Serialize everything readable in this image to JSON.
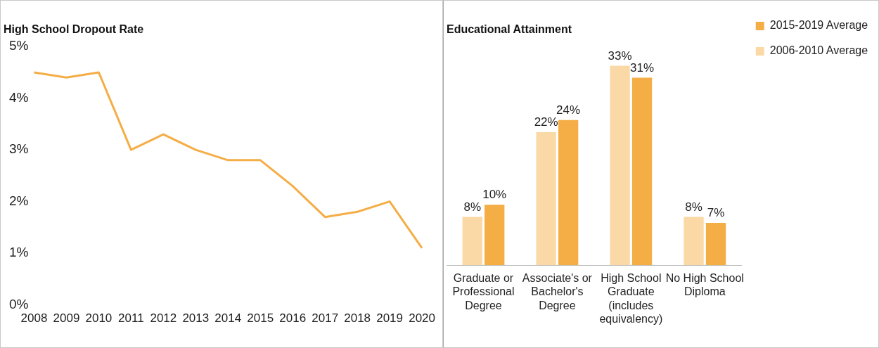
{
  "chart_data": [
    {
      "type": "line",
      "title": "High School Dropout Rate",
      "categories": [
        "2008",
        "2009",
        "2010",
        "2011",
        "2012",
        "2013",
        "2014",
        "2015",
        "2016",
        "2017",
        "2018",
        "2019",
        "2020"
      ],
      "series": [
        {
          "color": "#f5ad46",
          "values": [
            4.5,
            4.4,
            4.5,
            3.0,
            3.3,
            3.0,
            2.8,
            2.8,
            2.3,
            1.7,
            1.8,
            2.0,
            1.1
          ]
        }
      ],
      "ylim": [
        0,
        5
      ],
      "yticks": [
        {
          "value": 0,
          "label": "0%"
        },
        {
          "value": 1,
          "label": "1%"
        },
        {
          "value": 2,
          "label": "2%"
        },
        {
          "value": 3,
          "label": "3%"
        },
        {
          "value": 4,
          "label": "4%"
        },
        {
          "value": 5,
          "label": "5%"
        }
      ],
      "grid": false,
      "legend": false,
      "marker": "none",
      "line_style": "solid",
      "tick_labels": true
    },
    {
      "type": "bar",
      "title": "Educational Attainment",
      "categories": [
        "Graduate or Professional Degree",
        "Associate's or Bachelor's Degree",
        "High School Graduate (includes equivalency)",
        "No High School Diploma"
      ],
      "series": [
        {
          "name": "2006-2010 Average",
          "color": "#fbd9a6",
          "values": [
            8,
            22,
            33,
            8
          ],
          "value_labels": [
            "8%",
            "22%",
            "33%",
            "8%"
          ]
        },
        {
          "name": "2015-2019 Average",
          "color": "#f5ad46",
          "values": [
            10,
            24,
            31,
            7
          ],
          "value_labels": [
            "10%",
            "24%",
            "31%",
            "7%"
          ]
        }
      ],
      "grid": false,
      "legend": "right",
      "tick_labels": "x"
    }
  ]
}
